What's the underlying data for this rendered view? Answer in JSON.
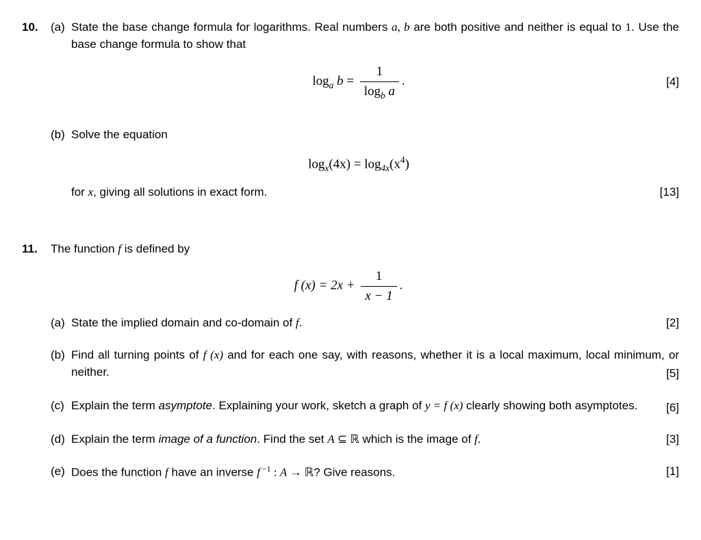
{
  "q10": {
    "num": "10.",
    "a": {
      "label": "(a)",
      "text1": "State the base change formula for logarithms.  Real numbers ",
      "ab": "a, b",
      "text2": " are both positive and neither is equal to ",
      "one": "1",
      "text3": ". Use the base change formula to show that",
      "eq_lhs": "log",
      "eq_sub1": "a",
      "eq_b": "b",
      "eq_eq": " = ",
      "frac_n": "1",
      "frac_d1": "log",
      "frac_d_sub": "b",
      "frac_d2": " a",
      "period": ".",
      "marks": "[4]"
    },
    "b": {
      "label": "(b)",
      "text1": "Solve the equation",
      "eq_l1": "log",
      "eq_l1s": "x",
      "eq_l2": "(4x) = log",
      "eq_l2s": "4x",
      "eq_l3": "(x",
      "eq_sup": "4",
      "eq_l4": ")",
      "text2a": "for ",
      "text2x": "x",
      "text2b": ", giving all solutions in exact form.",
      "marks": "[13]"
    }
  },
  "q11": {
    "num": "11.",
    "intro1": "The function ",
    "intro_f": "f",
    "intro2": " is defined by",
    "eq_lhs": "f (x) = 2x + ",
    "frac_n": "1",
    "frac_d": "x − 1",
    "period": ".",
    "a": {
      "label": "(a)",
      "t1": "State the implied domain and co-domain of ",
      "f": "f",
      "t2": ".",
      "marks": "[2]"
    },
    "b": {
      "label": "(b)",
      "t1": "Find all turning points of ",
      "fx": "f (x)",
      "t2": " and for each one say, with reasons, whether it is a local maximum, local minimum, or neither.",
      "marks": "[5]"
    },
    "c": {
      "label": "(c)",
      "t1": "Explain the term ",
      "asym": "asymptote",
      "t2": ".  Explaining your work, sketch a graph of ",
      "yfx": "y = f (x)",
      "t3": " clearly showing both asymptotes.",
      "marks": "[6]"
    },
    "d": {
      "label": "(d)",
      "t1": "Explain the term ",
      "img": "image of a function",
      "t2": ". Find the set ",
      "A": "A",
      "subset": " ⊆ ",
      "R": "ℝ",
      "t3": " which is the image of ",
      "f": "f",
      "t4": ".",
      "marks": "[3]"
    },
    "e": {
      "label": "(e)",
      "t1": "Does the function ",
      "f": "f",
      "t2": " have an inverse ",
      "finv": "f",
      "sup": " −1",
      "colon": " : ",
      "A": "A",
      "arrow": " → ",
      "R": "ℝ",
      "t3": "? Give reasons.",
      "marks": "[1]"
    }
  }
}
